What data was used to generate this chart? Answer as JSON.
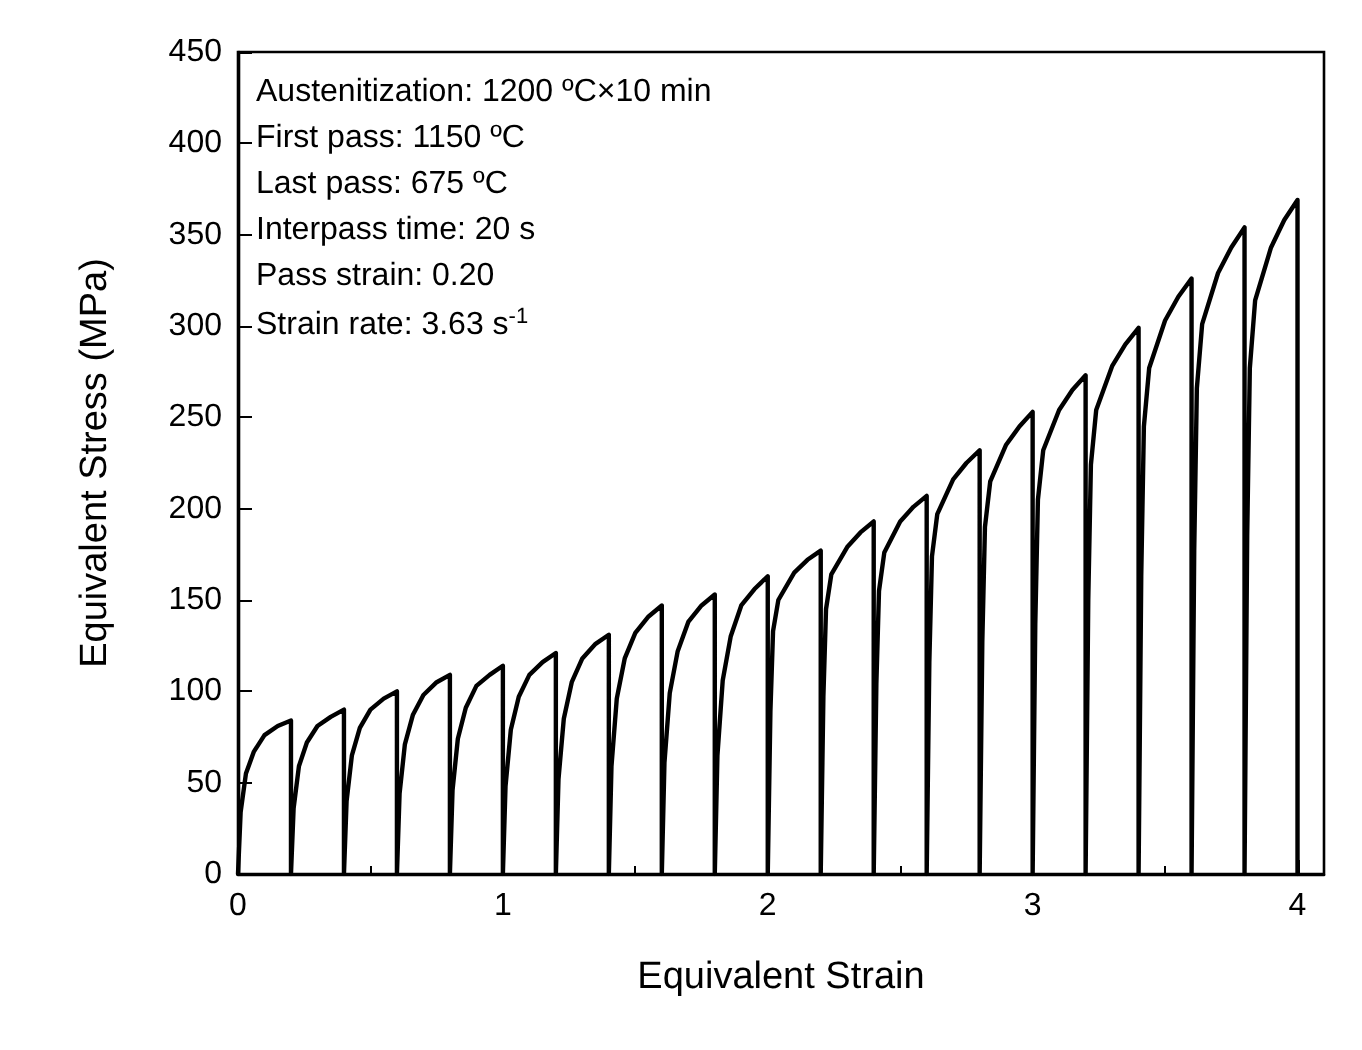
{
  "chart_data": {
    "type": "line",
    "xlabel": "Equivalent Strain",
    "ylabel": "Equivalent Stress (MPa)",
    "annotations": [
      "Austenitization: 1200 ºC×10 min",
      "First pass: 1150 ºC",
      "Last pass: 675 ºC",
      "Interpass time: 20 s",
      "Pass strain: 0.20",
      "Strain rate: 3.63 s$^{-1}$"
    ],
    "xlim": [
      0,
      4.1
    ],
    "xticks": [
      0,
      1,
      2,
      3,
      4
    ],
    "ylim": [
      0,
      450
    ],
    "yticks": [
      0,
      50,
      100,
      150,
      200,
      250,
      300,
      350,
      400,
      450
    ],
    "grid": false,
    "marker": "none",
    "line_style": "solid",
    "series": [
      {
        "color": "#000000",
        "x": [
          0,
          0.01,
          0.03,
          0.06,
          0.1,
          0.15,
          0.2,
          0.2,
          0.21,
          0.23,
          0.26,
          0.3,
          0.35,
          0.4,
          0.4,
          0.41,
          0.43,
          0.46,
          0.5,
          0.55,
          0.6,
          0.6,
          0.61,
          0.63,
          0.66,
          0.7,
          0.75,
          0.8,
          0.8,
          0.81,
          0.83,
          0.86,
          0.9,
          0.95,
          1.0,
          1.0,
          1.01,
          1.03,
          1.06,
          1.1,
          1.15,
          1.2,
          1.2,
          1.21,
          1.23,
          1.26,
          1.3,
          1.35,
          1.4,
          1.4,
          1.41,
          1.43,
          1.46,
          1.5,
          1.55,
          1.6,
          1.6,
          1.61,
          1.63,
          1.66,
          1.7,
          1.75,
          1.8,
          1.8,
          1.81,
          1.83,
          1.86,
          1.9,
          1.95,
          2.0,
          2.0,
          2.01,
          2.02,
          2.04,
          2.1,
          2.15,
          2.2,
          2.2,
          2.21,
          2.22,
          2.24,
          2.3,
          2.35,
          2.4,
          2.4,
          2.41,
          2.42,
          2.44,
          2.5,
          2.55,
          2.6,
          2.6,
          2.61,
          2.62,
          2.64,
          2.7,
          2.75,
          2.8,
          2.8,
          2.81,
          2.82,
          2.84,
          2.9,
          2.95,
          3.0,
          3.0,
          3.01,
          3.02,
          3.04,
          3.1,
          3.15,
          3.2,
          3.2,
          3.21,
          3.22,
          3.24,
          3.3,
          3.35,
          3.4,
          3.4,
          3.41,
          3.42,
          3.44,
          3.5,
          3.55,
          3.6,
          3.6,
          3.61,
          3.62,
          3.64,
          3.7,
          3.75,
          3.8,
          3.8,
          3.81,
          3.82,
          3.84,
          3.9,
          3.95,
          4.0,
          4.0
        ],
        "values": [
          0,
          34,
          55,
          67,
          76,
          81,
          84,
          0,
          36,
          59,
          72,
          81,
          86,
          90,
          0,
          40,
          65,
          80,
          90,
          96,
          100,
          0,
          44,
          71,
          87,
          98,
          105,
          109,
          0,
          46,
          74,
          91,
          103,
          109,
          114,
          0,
          48,
          79,
          97,
          109,
          116,
          121,
          0,
          52,
          85,
          105,
          118,
          126,
          131,
          0,
          59,
          96,
          118,
          132,
          141,
          147,
          0,
          61,
          99,
          122,
          138,
          147,
          153,
          0,
          65,
          106,
          130,
          147,
          156,
          163,
          0,
          89,
          133,
          150,
          165,
          172,
          177,
          0,
          97,
          145,
          164,
          179,
          187,
          193,
          0,
          104,
          155,
          176,
          193,
          201,
          207,
          0,
          116,
          174,
          197,
          216,
          225,
          232,
          0,
          127,
          190,
          215,
          235,
          245,
          253,
          0,
          137,
          205,
          232,
          254,
          265,
          273,
          0,
          150,
          224,
          254,
          278,
          290,
          299,
          0,
          163,
          245,
          277,
          303,
          316,
          326,
          0,
          177,
          266,
          301,
          329,
          343,
          354,
          0,
          185,
          277,
          314,
          343,
          358,
          369,
          0
        ]
      }
    ]
  }
}
